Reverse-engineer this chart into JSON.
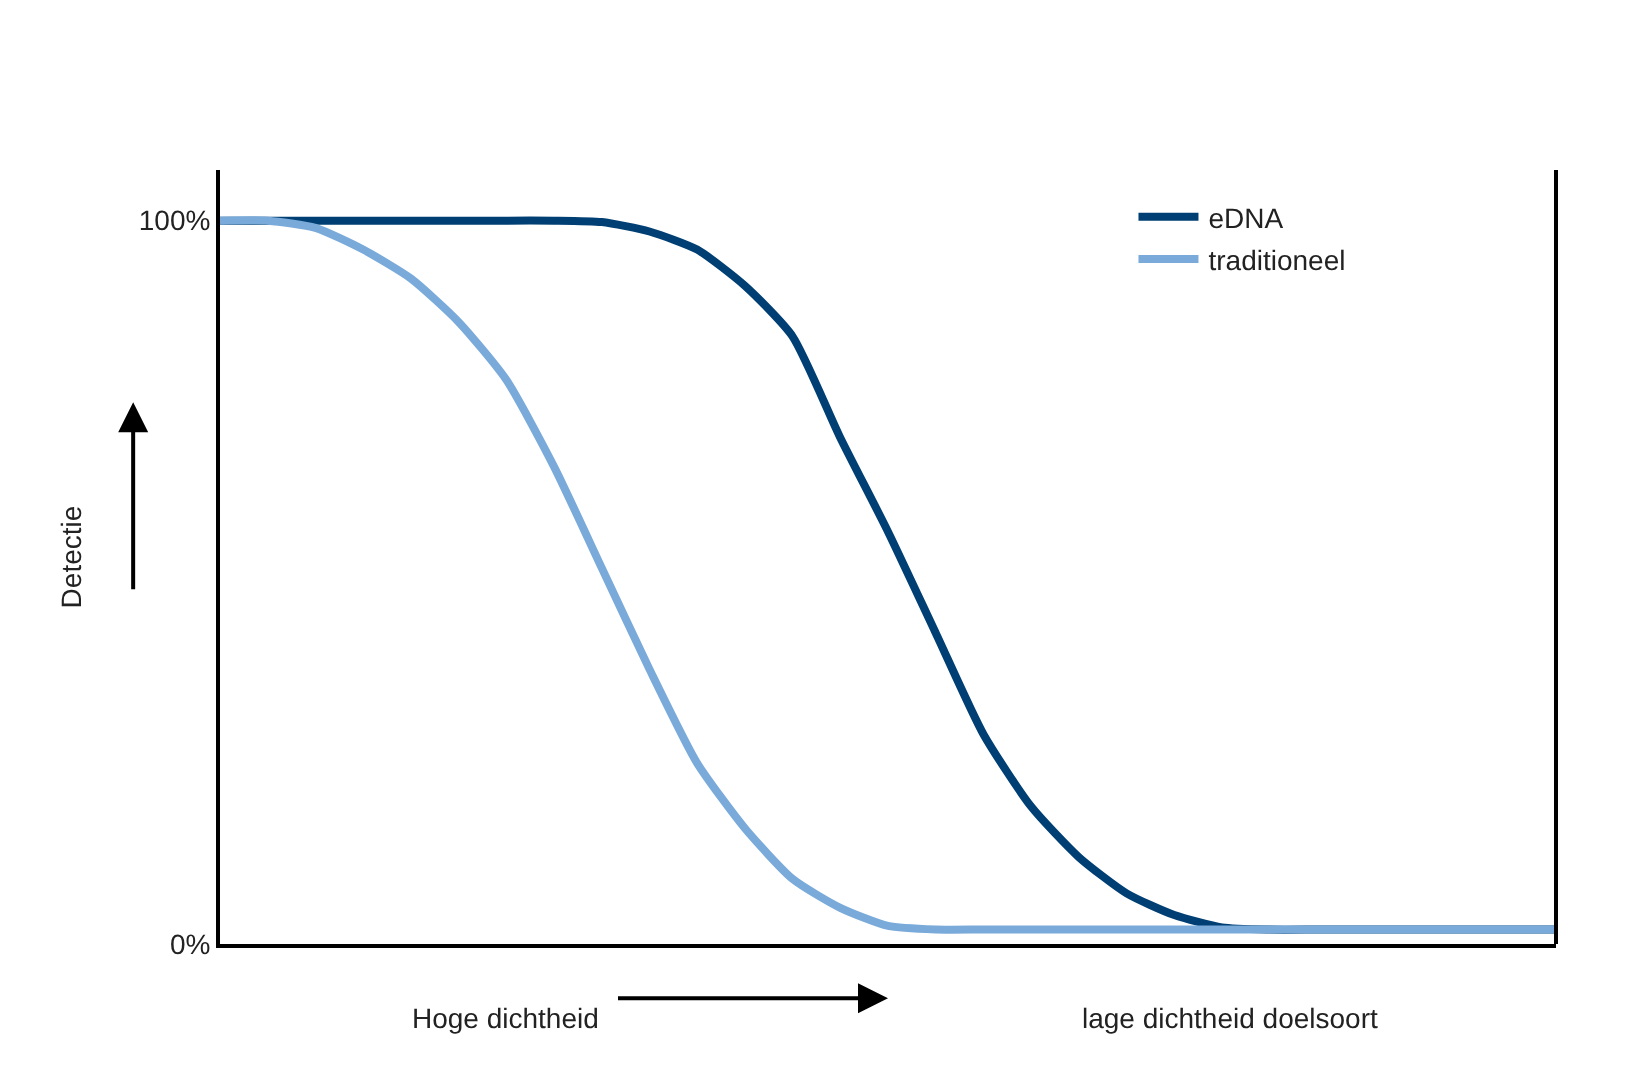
{
  "chart_data": {
    "type": "line",
    "ylabel": "Detectie",
    "categories": [
      null,
      null,
      null,
      null,
      null,
      null,
      null,
      null,
      null,
      null,
      null,
      null,
      null,
      null,
      null,
      null,
      null,
      null,
      null,
      null,
      null,
      null,
      null,
      null,
      null,
      null,
      null,
      null,
      null
    ],
    "series": [
      {
        "name": "eDNA",
        "color": "#003f73",
        "values": [
          100,
          100,
          100,
          100,
          100,
          100,
          100,
          100,
          99.8,
          98.5,
          96,
          91,
          84,
          70,
          57,
          43,
          29,
          19,
          12,
          7,
          4,
          2.3,
          2,
          2,
          2,
          2,
          2,
          2,
          2
        ]
      },
      {
        "name": "traditioneel",
        "color": "#7aaad9",
        "values": [
          100,
          100,
          99,
          96,
          92,
          86,
          78,
          66,
          52,
          38,
          25,
          16,
          9,
          5,
          2.5,
          2,
          2,
          2,
          2,
          2,
          2,
          2,
          2,
          2,
          2,
          2,
          2,
          2,
          2
        ]
      }
    ],
    "ylim": [
      0,
      107
    ],
    "yticks": [
      {
        "value": 0,
        "label": "0%"
      },
      {
        "value": 100,
        "label": "100%"
      }
    ],
    "annotations": [
      "Hoge dichtheid",
      "lage dichtheid doelsoort"
    ],
    "legend": "top right",
    "marker": "none",
    "line_style": "solid"
  }
}
